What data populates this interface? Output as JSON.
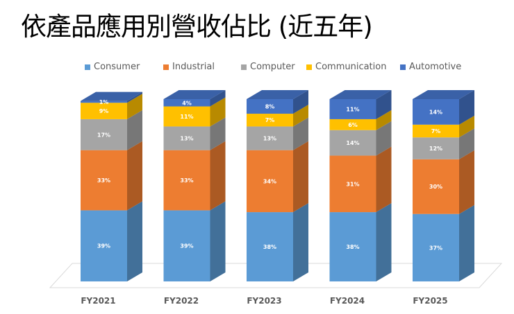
{
  "chart_data": {
    "type": "bar",
    "stacked": true,
    "style": "3d-stacked-percent",
    "title": "依產品應用別營收佔比 (近五年)",
    "categories": [
      "FY2021",
      "FY2022",
      "FY2023",
      "FY2024",
      "FY2025"
    ],
    "series": [
      {
        "name": "Consumer",
        "color": "#5B9BD5",
        "values": [
          39,
          39,
          38,
          38,
          37
        ]
      },
      {
        "name": "Industrial",
        "color": "#ED7D31",
        "values": [
          33,
          33,
          34,
          31,
          30
        ]
      },
      {
        "name": "Computer",
        "color": "#A5A5A5",
        "values": [
          17,
          13,
          13,
          14,
          12
        ]
      },
      {
        "name": "Communication",
        "color": "#FFC000",
        "values": [
          9,
          11,
          7,
          6,
          7
        ]
      },
      {
        "name": "Automotive",
        "color": "#4472C4",
        "values": [
          1,
          4,
          8,
          11,
          14
        ]
      }
    ],
    "value_format": "percent",
    "ylim": [
      0,
      100
    ],
    "legend_position": "top",
    "grid": false
  }
}
